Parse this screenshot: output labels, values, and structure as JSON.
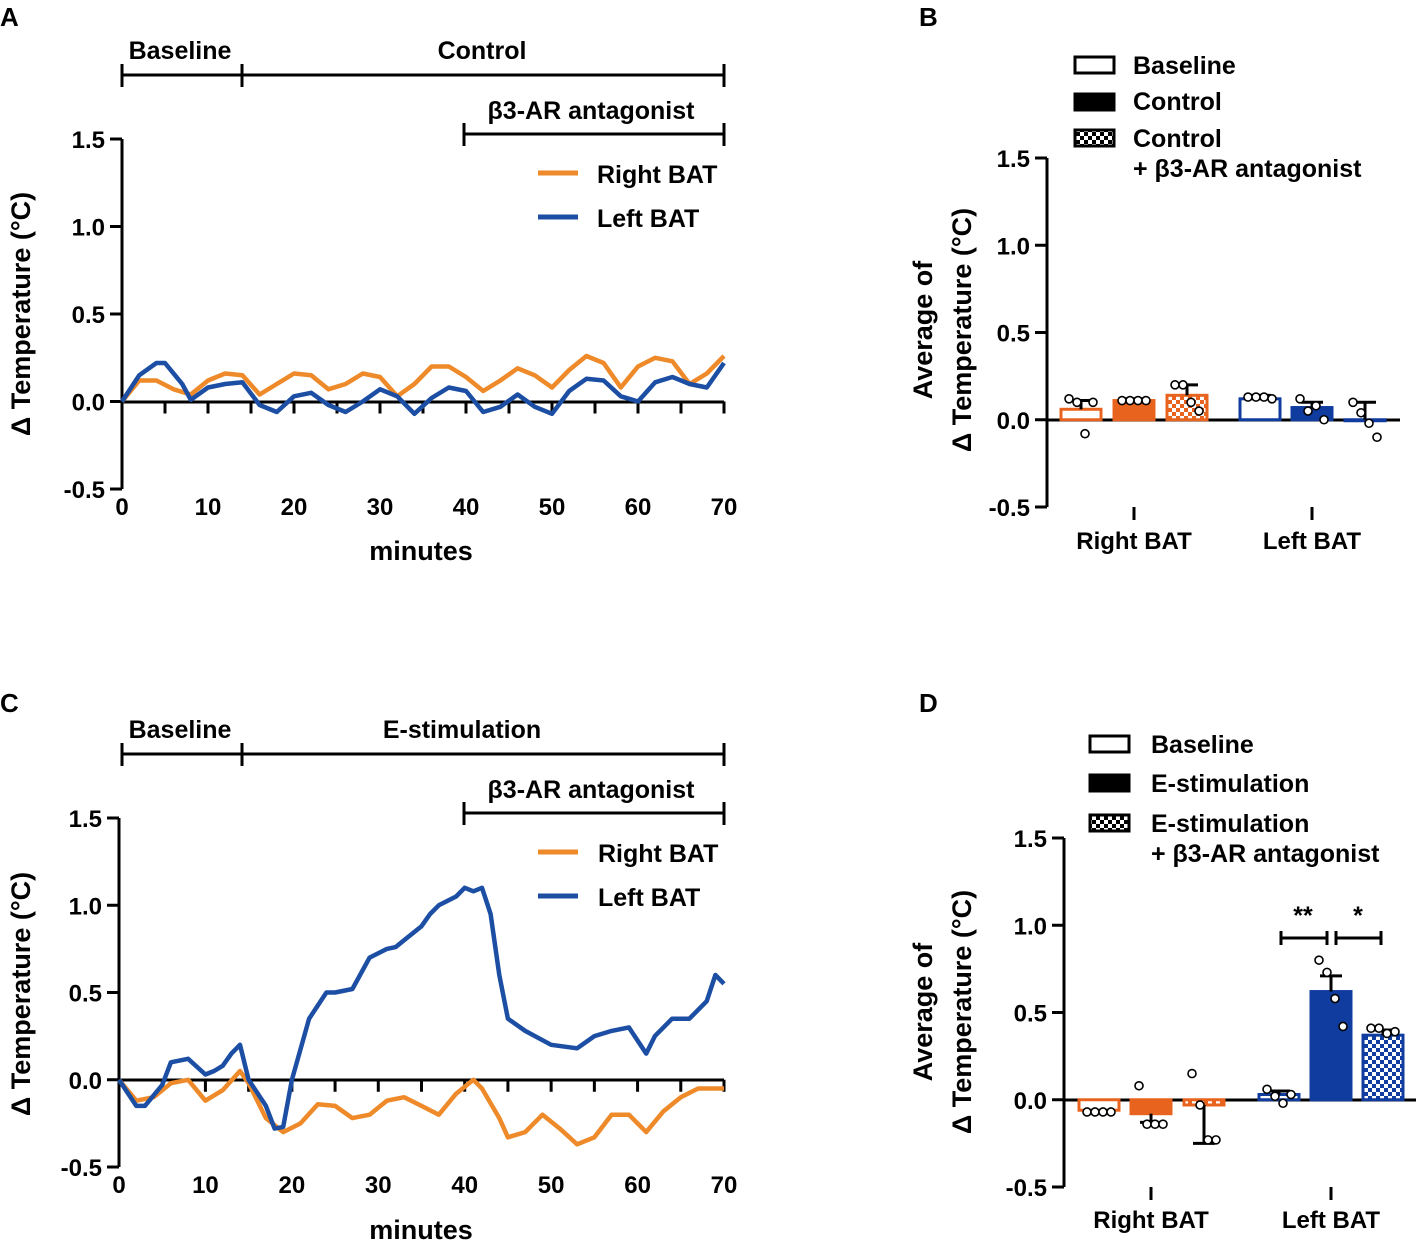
{
  "colors": {
    "right": "#ee8a2a",
    "left": "#1c4ea3",
    "right_bar": "#e8641e",
    "left_bar": "#0f3c9e"
  },
  "chart_data": [
    {
      "panel": "A",
      "type": "line",
      "xlabel": "minutes",
      "ylabel": "Δ Temperature (°C)",
      "xlim": [
        0,
        70
      ],
      "ylim": [
        -0.5,
        1.5
      ],
      "xticks": [
        "0",
        "10",
        "20",
        "30",
        "40",
        "50",
        "60",
        "70"
      ],
      "yticks": [
        "-0.5",
        "0.0",
        "0.5",
        "1.0",
        "1.5"
      ],
      "periods": [
        {
          "label": "Baseline",
          "start": 0,
          "end": 14
        },
        {
          "label": "Control",
          "start": 14,
          "end": 70
        },
        {
          "label": "β3-AR antagonist",
          "start": 40,
          "end": 70
        }
      ],
      "legend": [
        "Right BAT",
        "Left BAT"
      ],
      "series": [
        {
          "name": "Right BAT",
          "color": "#ee8a2a",
          "x": [
            0,
            2,
            4,
            6,
            8,
            10,
            12,
            14,
            16,
            18,
            20,
            22,
            24,
            26,
            28,
            30,
            32,
            34,
            36,
            38,
            40,
            42,
            44,
            46,
            48,
            50,
            52,
            54,
            56,
            58,
            60,
            62,
            64,
            66,
            68,
            70
          ],
          "y": [
            0,
            0.12,
            0.12,
            0.07,
            0.04,
            0.12,
            0.16,
            0.15,
            0.04,
            0.1,
            0.16,
            0.15,
            0.07,
            0.1,
            0.16,
            0.14,
            0.03,
            0.1,
            0.2,
            0.2,
            0.14,
            0.06,
            0.12,
            0.19,
            0.15,
            0.08,
            0.18,
            0.26,
            0.22,
            0.08,
            0.2,
            0.25,
            0.23,
            0.1,
            0.16,
            0.26
          ]
        },
        {
          "name": "Left BAT",
          "color": "#1c4ea3",
          "x": [
            0,
            2,
            4,
            5,
            7,
            8,
            10,
            12,
            14,
            16,
            18,
            20,
            22,
            24,
            26,
            28,
            30,
            32,
            34,
            36,
            38,
            40,
            42,
            44,
            46,
            48,
            50,
            52,
            54,
            56,
            58,
            60,
            62,
            64,
            66,
            68,
            70
          ],
          "y": [
            0,
            0.15,
            0.22,
            0.22,
            0.1,
            0.01,
            0.08,
            0.1,
            0.11,
            -0.02,
            -0.06,
            0.03,
            0.05,
            -0.02,
            -0.06,
            0,
            0.07,
            0.03,
            -0.07,
            0.02,
            0.08,
            0.06,
            -0.06,
            -0.03,
            0.04,
            -0.03,
            -0.07,
            0.06,
            0.13,
            0.12,
            0.03,
            0,
            0.11,
            0.14,
            0.1,
            0.08,
            0.22
          ]
        }
      ]
    },
    {
      "panel": "B",
      "type": "bar",
      "ylabel_lines": [
        "Average of",
        "Δ Temperature (°C)"
      ],
      "ylim": [
        -0.5,
        1.5
      ],
      "yticks": [
        "-0.5",
        "0.0",
        "0.5",
        "1.0",
        "1.5"
      ],
      "categories": [
        "Right BAT",
        "Left BAT"
      ],
      "legend": [
        "Baseline",
        "Control",
        "Control",
        "+ β3-AR antagonist"
      ],
      "series": [
        {
          "name": "Baseline",
          "values": [
            0.06,
            0.12
          ],
          "errors": [
            0.05,
            0.02
          ],
          "points": [
            [
              0.12,
              0.1,
              -0.08,
              0.1
            ],
            [
              0.13,
              0.13,
              0.13,
              0.12
            ]
          ]
        },
        {
          "name": "Control",
          "values": [
            0.11,
            0.07
          ],
          "errors": [
            0.01,
            0.03
          ],
          "points": [
            [
              0.11,
              0.11,
              0.11,
              0.11
            ],
            [
              0.12,
              0.05,
              0.08,
              0.0
            ]
          ]
        },
        {
          "name": "Control + β3-AR antagonist",
          "values": [
            0.14,
            0.0
          ],
          "errors": [
            0.06,
            0.1
          ],
          "points": [
            [
              0.2,
              0.2,
              0.1,
              0.05
            ],
            [
              0.1,
              0.04,
              -0.02,
              -0.1
            ]
          ]
        }
      ]
    },
    {
      "panel": "C",
      "type": "line",
      "xlabel": "minutes",
      "ylabel": "Δ Temperature (°C)",
      "xlim": [
        0,
        70
      ],
      "ylim": [
        -0.5,
        1.5
      ],
      "xticks": [
        "0",
        "10",
        "20",
        "30",
        "40",
        "50",
        "60",
        "70"
      ],
      "yticks": [
        "-0.5",
        "0.0",
        "0.5",
        "1.0",
        "1.5"
      ],
      "periods": [
        {
          "label": "Baseline",
          "start": 0,
          "end": 14
        },
        {
          "label": "E-stimulation",
          "start": 14,
          "end": 70
        },
        {
          "label": "β3-AR antagonist",
          "start": 40,
          "end": 70
        }
      ],
      "legend": [
        "Right BAT",
        "Left BAT"
      ],
      "series": [
        {
          "name": "Right BAT",
          "color": "#ee8a2a",
          "x": [
            0,
            2,
            4,
            6,
            8,
            10,
            12,
            14,
            15,
            17,
            19,
            21,
            23,
            25,
            27,
            29,
            31,
            33,
            35,
            37,
            39,
            41,
            42,
            44,
            45,
            47,
            49,
            51,
            53,
            55,
            57,
            59,
            61,
            63,
            65,
            67,
            70
          ],
          "y": [
            0,
            -0.12,
            -0.1,
            -0.02,
            0,
            -0.12,
            -0.06,
            0.05,
            -0.02,
            -0.22,
            -0.3,
            -0.25,
            -0.14,
            -0.15,
            -0.22,
            -0.2,
            -0.12,
            -0.1,
            -0.15,
            -0.2,
            -0.08,
            0,
            -0.05,
            -0.22,
            -0.33,
            -0.3,
            -0.2,
            -0.28,
            -0.37,
            -0.33,
            -0.2,
            -0.2,
            -0.3,
            -0.18,
            -0.1,
            -0.05,
            -0.05
          ]
        },
        {
          "name": "Left BAT",
          "color": "#1c4ea3",
          "x": [
            0,
            2,
            3,
            5,
            6,
            8,
            10,
            11,
            12,
            13,
            14,
            15,
            17,
            18,
            19,
            20,
            22,
            24,
            25,
            27,
            29,
            31,
            32,
            33,
            35,
            36,
            37,
            39,
            40,
            41,
            42,
            43,
            44,
            45,
            47,
            50,
            53,
            55,
            57,
            59,
            61,
            62,
            64,
            66,
            68,
            69,
            70
          ],
          "y": [
            0,
            -0.15,
            -0.15,
            -0.03,
            0.1,
            0.12,
            0.03,
            0.05,
            0.08,
            0.15,
            0.2,
            0,
            -0.15,
            -0.28,
            -0.27,
            0,
            0.35,
            0.5,
            0.5,
            0.52,
            0.7,
            0.75,
            0.76,
            0.8,
            0.88,
            0.95,
            1.0,
            1.05,
            1.1,
            1.08,
            1.1,
            0.95,
            0.6,
            0.35,
            0.28,
            0.2,
            0.18,
            0.25,
            0.28,
            0.3,
            0.15,
            0.25,
            0.35,
            0.35,
            0.45,
            0.6,
            0.55
          ]
        }
      ]
    },
    {
      "panel": "D",
      "type": "bar",
      "ylabel_lines": [
        "Average of",
        "Δ Temperature (°C)"
      ],
      "ylim": [
        -0.5,
        1.5
      ],
      "yticks": [
        "-0.5",
        "0.0",
        "0.5",
        "1.0",
        "1.5"
      ],
      "categories": [
        "Right BAT",
        "Left BAT"
      ],
      "legend": [
        "Baseline",
        "E-stimulation",
        "E-stimulation",
        "+ β3-AR antagonist"
      ],
      "significance": [
        "**",
        "*"
      ],
      "series": [
        {
          "name": "Baseline",
          "values": [
            -0.06,
            0.03
          ],
          "errors": [
            0.01,
            0.02
          ],
          "points": [
            [
              -0.07,
              -0.07,
              -0.07,
              -0.07
            ],
            [
              0.06,
              0.02,
              -0.02,
              0.03
            ]
          ]
        },
        {
          "name": "E-stimulation",
          "values": [
            -0.08,
            0.62
          ],
          "errors": [
            0.05,
            0.09
          ],
          "points": [
            [
              0.08,
              -0.14,
              -0.14,
              -0.14
            ],
            [
              0.8,
              0.73,
              0.58,
              0.42
            ]
          ]
        },
        {
          "name": "E-stimulation + β3-AR antagonist",
          "values": [
            -0.03,
            0.37
          ],
          "errors": [
            0.22,
            0.03
          ],
          "points": [
            [
              0.15,
              -0.03,
              -0.23,
              -0.23
            ],
            [
              0.41,
              0.41,
              0.38,
              0.39
            ]
          ]
        }
      ]
    }
  ]
}
